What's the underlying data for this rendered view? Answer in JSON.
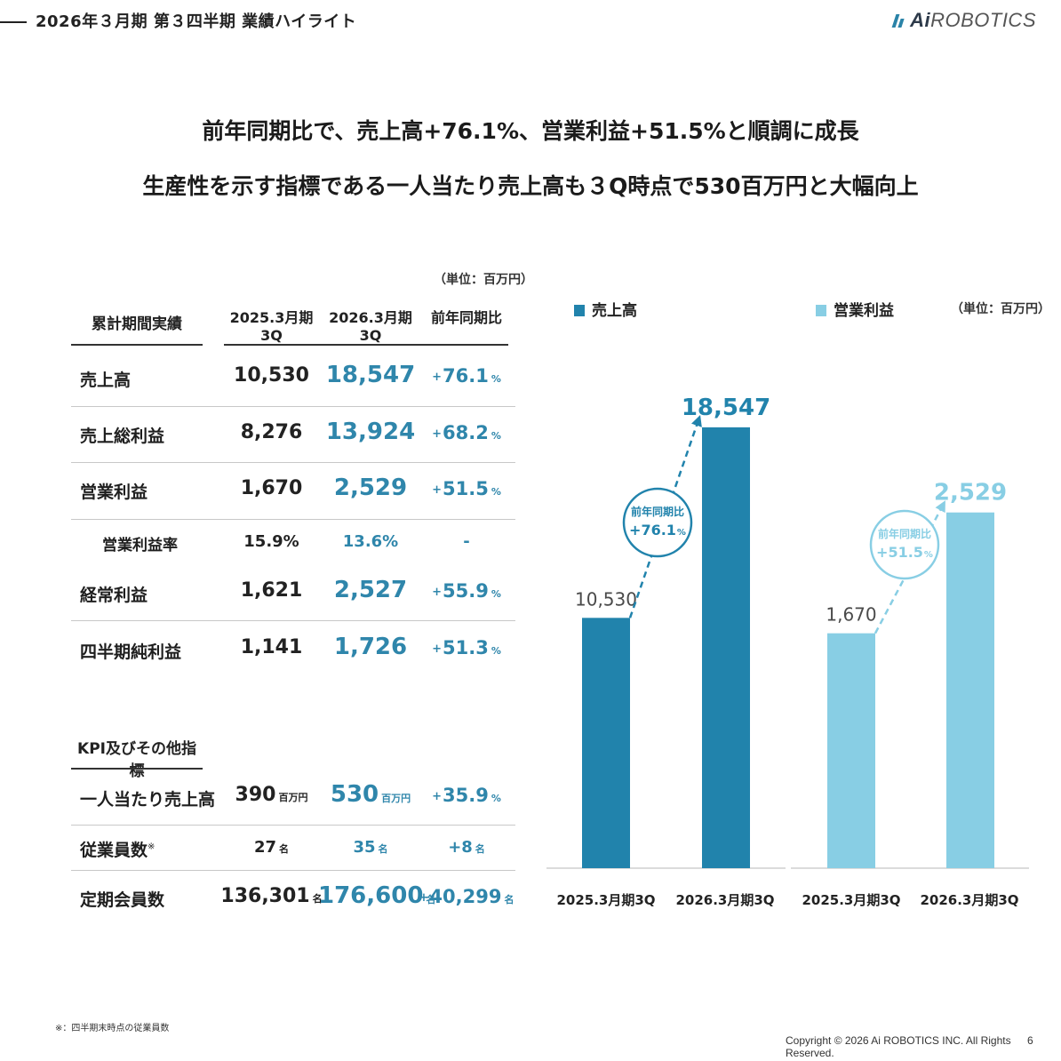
{
  "header": {
    "title": "2026年３月期 第３四半期 業績ハイライト",
    "logo_ai": "Ai",
    "logo_rest": "ROBOTICS"
  },
  "headline": {
    "line1": "前年同期比で、売上高+76.1%、営業利益+51.5%と順調に成長",
    "line2": "生産性を示す指標である一人当たり売上高も３Q時点で530百万円と大幅向上"
  },
  "table": {
    "unit": "（単位：百万円）",
    "section1": "累計期間実績",
    "columns": [
      "2025.3月期3Q",
      "2026.3月期3Q",
      "前年同期比"
    ],
    "rows": [
      {
        "label": "売上高",
        "prev": "10,530",
        "curr": "18,547",
        "yoy": "76.1",
        "yoy_unit": "%"
      },
      {
        "label": "売上総利益",
        "prev": "8,276",
        "curr": "13,924",
        "yoy": "68.2",
        "yoy_unit": "%"
      },
      {
        "label": "営業利益",
        "prev": "1,670",
        "curr": "2,529",
        "yoy": "51.5",
        "yoy_unit": "%"
      },
      {
        "label": "営業利益率",
        "prev": "15.9%",
        "curr": "13.6%",
        "yoy": "-"
      },
      {
        "label": "経常利益",
        "prev": "1,621",
        "curr": "2,527",
        "yoy": "55.9",
        "yoy_unit": "%"
      },
      {
        "label": "四半期純利益",
        "prev": "1,141",
        "curr": "1,726",
        "yoy": "51.3",
        "yoy_unit": "%"
      }
    ],
    "section2": "KPI及びその他指標",
    "kpi_rows": [
      {
        "label": "一人当たり売上高",
        "prev": "390",
        "prev_unit": "百万円",
        "curr": "530",
        "curr_unit": "百万円",
        "yoy": "35.9",
        "yoy_unit": "%"
      },
      {
        "label": "従業員数",
        "label_note": "※",
        "prev": "27",
        "prev_unit": "名",
        "curr": "35",
        "curr_unit": "名",
        "yoy": "+8",
        "yoy_unit": "名"
      },
      {
        "label": "定期会員数",
        "prev": "136,301",
        "prev_unit": "名",
        "curr": "176,600",
        "curr_unit": "名",
        "yoy": "40,299",
        "yoy_unit": "名"
      }
    ],
    "plus_sign": "+"
  },
  "chart_data": [
    {
      "type": "bar",
      "legend": "売上高",
      "categories": [
        "2025.3月期3Q",
        "2026.3月期3Q"
      ],
      "values": [
        10530,
        18547
      ],
      "value_labels": [
        "10,530",
        "18,547"
      ],
      "ylim": [
        0,
        20000
      ],
      "annotation": {
        "line1": "前年同期比",
        "line2": "+76.1",
        "unit": "%"
      },
      "color": "#2183ac"
    },
    {
      "type": "bar",
      "legend": "営業利益",
      "unit": "（単位：百万円）",
      "categories": [
        "2025.3月期3Q",
        "2026.3月期3Q"
      ],
      "values": [
        1670,
        2529
      ],
      "value_labels": [
        "1,670",
        "2,529"
      ],
      "ylim": [
        0,
        3380
      ],
      "annotation": {
        "line1": "前年同期比",
        "line2": "+51.5",
        "unit": "%"
      },
      "color": "#88cee4"
    }
  ],
  "footnote": "※：四半期末時点の従業員数",
  "footer": {
    "copyright": "Copyright © 2026 Ai ROBOTICS INC. All Rights Reserved.",
    "page": "6"
  }
}
